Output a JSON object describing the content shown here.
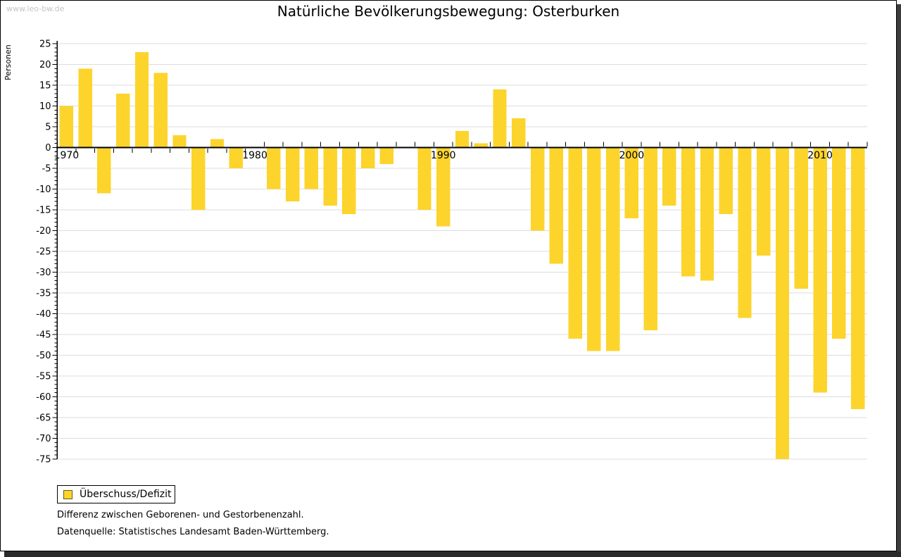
{
  "watermark": "www.leo-bw.de",
  "title": "Natürliche Bevölkerungsbewegung: Osterburken",
  "y_axis_label": "Personen",
  "legend": {
    "label": "Überschuss/Defizit"
  },
  "caption_line1": "Differenz zwischen Geborenen- und Gestorbenenzahl.",
  "caption_line2": "Datenquelle: Statistisches Landesamt Baden-Württemberg.",
  "colors": {
    "bar": "#fcd42c",
    "grid": "#dddddd",
    "axis": "#000000",
    "text": "#000000",
    "watermark": "#c4c4c4"
  },
  "chart_data": {
    "type": "bar",
    "title": "Natürliche Bevölkerungsbewegung: Osterburken",
    "xlabel": "",
    "ylabel": "Personen",
    "series_name": "Überschuss/Defizit",
    "ylim": [
      -75,
      25
    ],
    "y_tick_step": 5,
    "y_minor_tick_step": 1,
    "grid": true,
    "legend_position": "bottom-left",
    "x_labeled_years": [
      1970,
      1980,
      1990,
      2000,
      2010
    ],
    "years": [
      1970,
      1971,
      1972,
      1973,
      1974,
      1975,
      1976,
      1977,
      1978,
      1979,
      1980,
      1981,
      1982,
      1983,
      1984,
      1985,
      1986,
      1987,
      1988,
      1989,
      1990,
      1991,
      1992,
      1993,
      1994,
      1995,
      1996,
      1997,
      1998,
      1999,
      2000,
      2001,
      2002,
      2003,
      2004,
      2005,
      2006,
      2007,
      2008,
      2009,
      2010,
      2011,
      2012
    ],
    "values": [
      10,
      19,
      -11,
      13,
      23,
      18,
      3,
      -15,
      2,
      -5,
      0,
      -10,
      -13,
      -10,
      -14,
      -16,
      -5,
      -4,
      0,
      -15,
      -19,
      4,
      1,
      14,
      7,
      -20,
      -28,
      -46,
      -49,
      -49,
      -17,
      -44,
      -14,
      -31,
      -32,
      -16,
      -41,
      -26,
      -75,
      -34,
      -59,
      -46,
      -63
    ]
  }
}
